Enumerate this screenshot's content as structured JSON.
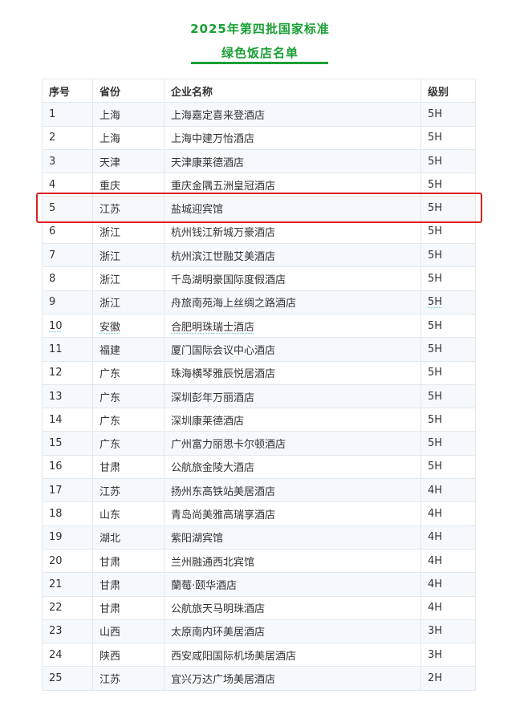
{
  "title_line1": "2025年第四批国家标准",
  "title_line2": "绿色饭店名单",
  "accent_color": "#1aa035",
  "highlight_color": "#e02020",
  "highlighted_row_index": 5,
  "columns": [
    "序号",
    "省份",
    "企业名称",
    "级别"
  ],
  "rows": [
    [
      "1",
      "上海",
      "上海嘉定喜来登酒店",
      "5H"
    ],
    [
      "2",
      "上海",
      "上海中建万怡酒店",
      "5H"
    ],
    [
      "3",
      "天津",
      "天津康莱德酒店",
      "5H"
    ],
    [
      "4",
      "重庆",
      "重庆金隅五洲皇冠酒店",
      "5H"
    ],
    [
      "5",
      "江苏",
      "盐城迎宾馆",
      "5H"
    ],
    [
      "6",
      "浙江",
      "杭州钱江新城万豪酒店",
      "5H"
    ],
    [
      "7",
      "浙江",
      "杭州滨江世融艾美酒店",
      "5H"
    ],
    [
      "8",
      "浙江",
      "千岛湖明豪国际度假酒店",
      "5H"
    ],
    [
      "9",
      "浙江",
      "舟旅南苑海上丝绸之路酒店",
      "5H"
    ],
    [
      "10",
      "安徽",
      "合肥明珠瑞士酒店",
      "5H"
    ],
    [
      "11",
      "福建",
      "厦门国际会议中心酒店",
      "5H"
    ],
    [
      "12",
      "广东",
      "珠海横琴雅辰悦居酒店",
      "5H"
    ],
    [
      "13",
      "广东",
      "深圳彭年万丽酒店",
      "5H"
    ],
    [
      "14",
      "广东",
      "深圳康莱德酒店",
      "5H"
    ],
    [
      "15",
      "广东",
      "广州富力丽思卡尔顿酒店",
      "5H"
    ],
    [
      "16",
      "甘肃",
      "公航旅金陵大酒店",
      "5H"
    ],
    [
      "17",
      "江苏",
      "扬州东高铁站美居酒店",
      "4H"
    ],
    [
      "18",
      "山东",
      "青岛尚美雅高瑞享酒店",
      "4H"
    ],
    [
      "19",
      "湖北",
      "紫阳湖宾馆",
      "4H"
    ],
    [
      "20",
      "甘肃",
      "兰州融通西北宾馆",
      "4H"
    ],
    [
      "21",
      "甘肃",
      "蘭莓·颐华酒店",
      "4H"
    ],
    [
      "22",
      "甘肃",
      "公航旅天马明珠酒店",
      "4H"
    ],
    [
      "23",
      "山西",
      "太原南内环美居酒店",
      "3H"
    ],
    [
      "24",
      "陕西",
      "西安咸阳国际机场美居酒店",
      "3H"
    ],
    [
      "25",
      "江苏",
      "宜兴万达广场美居酒店",
      "2H"
    ]
  ]
}
